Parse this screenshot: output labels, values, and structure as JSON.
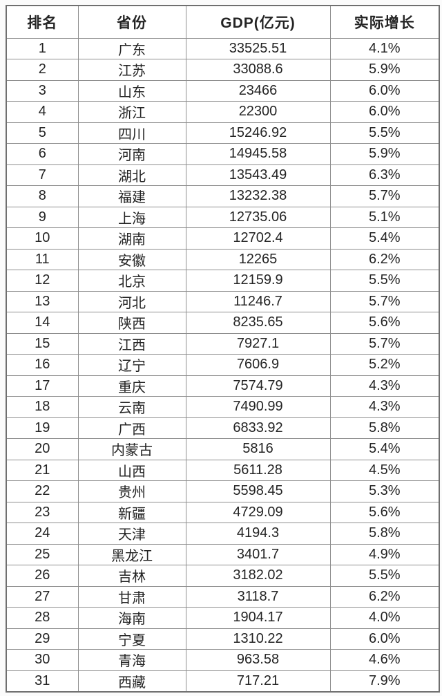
{
  "table": {
    "columns": [
      {
        "key": "rank",
        "label": "排名"
      },
      {
        "key": "province",
        "label": "省份"
      },
      {
        "key": "gdp",
        "label": "GDP(亿元)"
      },
      {
        "key": "growth",
        "label": "实际增长"
      }
    ],
    "rows": [
      {
        "rank": "1",
        "province": "广东",
        "gdp": "33525.51",
        "growth": "4.1%"
      },
      {
        "rank": "2",
        "province": "江苏",
        "gdp": "33088.6",
        "growth": "5.9%"
      },
      {
        "rank": "3",
        "province": "山东",
        "gdp": "23466",
        "growth": "6.0%"
      },
      {
        "rank": "4",
        "province": "浙江",
        "gdp": "22300",
        "growth": "6.0%"
      },
      {
        "rank": "5",
        "province": "四川",
        "gdp": "15246.92",
        "growth": "5.5%"
      },
      {
        "rank": "6",
        "province": "河南",
        "gdp": "14945.58",
        "growth": "5.9%"
      },
      {
        "rank": "7",
        "province": "湖北",
        "gdp": "13543.49",
        "growth": "6.3%"
      },
      {
        "rank": "8",
        "province": "福建",
        "gdp": "13232.38",
        "growth": "5.7%"
      },
      {
        "rank": "9",
        "province": "上海",
        "gdp": "12735.06",
        "growth": "5.1%"
      },
      {
        "rank": "10",
        "province": "湖南",
        "gdp": "12702.4",
        "growth": "5.4%"
      },
      {
        "rank": "11",
        "province": "安徽",
        "gdp": "12265",
        "growth": "6.2%"
      },
      {
        "rank": "12",
        "province": "北京",
        "gdp": "12159.9",
        "growth": "5.5%"
      },
      {
        "rank": "13",
        "province": "河北",
        "gdp": "11246.7",
        "growth": "5.7%"
      },
      {
        "rank": "14",
        "province": "陕西",
        "gdp": "8235.65",
        "growth": "5.6%"
      },
      {
        "rank": "15",
        "province": "江西",
        "gdp": "7927.1",
        "growth": "5.7%"
      },
      {
        "rank": "16",
        "province": "辽宁",
        "gdp": "7606.9",
        "growth": "5.2%"
      },
      {
        "rank": "17",
        "province": "重庆",
        "gdp": "7574.79",
        "growth": "4.3%"
      },
      {
        "rank": "18",
        "province": "云南",
        "gdp": "7490.99",
        "growth": "4.3%"
      },
      {
        "rank": "19",
        "province": "广西",
        "gdp": "6833.92",
        "growth": "5.8%"
      },
      {
        "rank": "20",
        "province": "内蒙古",
        "gdp": "5816",
        "growth": "5.4%"
      },
      {
        "rank": "21",
        "province": "山西",
        "gdp": "5611.28",
        "growth": "4.5%"
      },
      {
        "rank": "22",
        "province": "贵州",
        "gdp": "5598.45",
        "growth": "5.3%"
      },
      {
        "rank": "23",
        "province": "新疆",
        "gdp": "4729.09",
        "growth": "5.6%"
      },
      {
        "rank": "24",
        "province": "天津",
        "gdp": "4194.3",
        "growth": "5.8%"
      },
      {
        "rank": "25",
        "province": "黑龙江",
        "gdp": "3401.7",
        "growth": "4.9%"
      },
      {
        "rank": "26",
        "province": "吉林",
        "gdp": "3182.02",
        "growth": "5.5%"
      },
      {
        "rank": "27",
        "province": "甘肃",
        "gdp": "3118.7",
        "growth": "6.2%"
      },
      {
        "rank": "28",
        "province": "海南",
        "gdp": "1904.17",
        "growth": "4.0%"
      },
      {
        "rank": "29",
        "province": "宁夏",
        "gdp": "1310.22",
        "growth": "6.0%"
      },
      {
        "rank": "30",
        "province": "青海",
        "gdp": "963.58",
        "growth": "4.6%"
      },
      {
        "rank": "31",
        "province": "西藏",
        "gdp": "717.21",
        "growth": "7.9%"
      }
    ]
  },
  "chart_data": {
    "type": "table",
    "title": "",
    "columns": [
      "排名",
      "省份",
      "GDP(亿元)",
      "实际增长"
    ],
    "categories": [
      "广东",
      "江苏",
      "山东",
      "浙江",
      "四川",
      "河南",
      "湖北",
      "福建",
      "上海",
      "湖南",
      "安徽",
      "北京",
      "河北",
      "陕西",
      "江西",
      "辽宁",
      "重庆",
      "云南",
      "广西",
      "内蒙古",
      "山西",
      "贵州",
      "新疆",
      "天津",
      "黑龙江",
      "吉林",
      "甘肃",
      "海南",
      "宁夏",
      "青海",
      "西藏"
    ],
    "series": [
      {
        "name": "排名",
        "values": [
          1,
          2,
          3,
          4,
          5,
          6,
          7,
          8,
          9,
          10,
          11,
          12,
          13,
          14,
          15,
          16,
          17,
          18,
          19,
          20,
          21,
          22,
          23,
          24,
          25,
          26,
          27,
          28,
          29,
          30,
          31
        ]
      },
      {
        "name": "GDP(亿元)",
        "values": [
          33525.51,
          33088.6,
          23466,
          22300,
          15246.92,
          14945.58,
          13543.49,
          13232.38,
          12735.06,
          12702.4,
          12265,
          12159.9,
          11246.7,
          8235.65,
          7927.1,
          7606.9,
          7574.79,
          7490.99,
          6833.92,
          5816,
          5611.28,
          5598.45,
          4729.09,
          4194.3,
          3401.7,
          3182.02,
          3118.7,
          1904.17,
          1310.22,
          963.58,
          717.21
        ]
      },
      {
        "name": "实际增长(%)",
        "values": [
          4.1,
          5.9,
          6.0,
          6.0,
          5.5,
          5.9,
          6.3,
          5.7,
          5.1,
          5.4,
          6.2,
          5.5,
          5.7,
          5.6,
          5.7,
          5.2,
          4.3,
          4.3,
          5.8,
          5.4,
          4.5,
          5.3,
          5.6,
          5.8,
          4.9,
          5.5,
          6.2,
          4.0,
          6.0,
          4.6,
          7.9
        ]
      }
    ],
    "colors": {
      "border": "#8d8d8d",
      "outer_border": "#6f6f6f",
      "text": "#242424",
      "background": "#ffffff"
    }
  }
}
